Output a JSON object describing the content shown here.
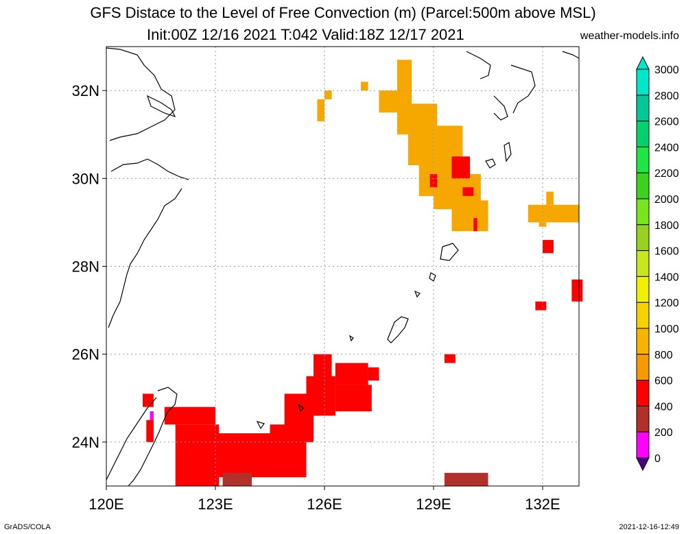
{
  "title": {
    "line1": "GFS Distace to the Level of Free Convection (m) (Parcel:500m above MSL)",
    "line2": "Init:00Z 12/16 2021 T:042 Valid:18Z 12/17 2021",
    "site": "weather-models.info"
  },
  "footer": {
    "left": "GrADS/COLA",
    "right": "2021-12-16-12:49"
  },
  "map": {
    "lon_range": [
      120,
      133
    ],
    "lat_range": [
      23,
      33
    ],
    "lon_ticks": [
      {
        "lon": 120,
        "label": "120E"
      },
      {
        "lon": 123,
        "label": "123E"
      },
      {
        "lon": 126,
        "label": "126E"
      },
      {
        "lon": 129,
        "label": "129E"
      },
      {
        "lon": 132,
        "label": "132E"
      }
    ],
    "lat_ticks": [
      {
        "lat": 24,
        "label": "24N"
      },
      {
        "lat": 26,
        "label": "26N"
      },
      {
        "lat": 28,
        "label": "28N"
      },
      {
        "lat": 30,
        "label": "30N"
      },
      {
        "lat": 32,
        "label": "32N"
      }
    ],
    "cells": [
      {
        "lon": 121.0,
        "lat": 24.8,
        "w": 0.3,
        "h": 0.3,
        "c": "#ff0000"
      },
      {
        "lon": 121.2,
        "lat": 24.5,
        "w": 0.1,
        "h": 0.2,
        "c": "#ff00ff"
      },
      {
        "lon": 121.1,
        "lat": 24.0,
        "w": 0.2,
        "h": 0.5,
        "c": "#ff0000"
      },
      {
        "lon": 121.6,
        "lat": 24.4,
        "w": 1.4,
        "h": 0.4,
        "c": "#ff0000"
      },
      {
        "lon": 121.9,
        "lat": 23.0,
        "w": 1.2,
        "h": 1.4,
        "c": "#ff0000"
      },
      {
        "lon": 123.0,
        "lat": 23.2,
        "w": 2.5,
        "h": 1.0,
        "c": "#ff0000"
      },
      {
        "lon": 124.5,
        "lat": 23.8,
        "w": 1.0,
        "h": 0.6,
        "c": "#ff0000"
      },
      {
        "lon": 124.9,
        "lat": 24.0,
        "w": 0.8,
        "h": 1.1,
        "c": "#ff0000"
      },
      {
        "lon": 125.5,
        "lat": 24.6,
        "w": 0.8,
        "h": 0.9,
        "c": "#ff0000"
      },
      {
        "lon": 126.3,
        "lat": 24.7,
        "w": 1.0,
        "h": 0.6,
        "c": "#ff0000"
      },
      {
        "lon": 126.3,
        "lat": 25.3,
        "w": 0.9,
        "h": 0.5,
        "c": "#ff0000"
      },
      {
        "lon": 127.2,
        "lat": 25.4,
        "w": 0.3,
        "h": 0.3,
        "c": "#ff0000"
      },
      {
        "lon": 125.7,
        "lat": 25.4,
        "w": 0.5,
        "h": 0.6,
        "c": "#ff0000"
      },
      {
        "lon": 129.3,
        "lat": 25.8,
        "w": 0.3,
        "h": 0.2,
        "c": "#ff0000"
      },
      {
        "lon": 131.8,
        "lat": 27.0,
        "w": 0.3,
        "h": 0.2,
        "c": "#ff0000"
      },
      {
        "lon": 132.8,
        "lat": 27.2,
        "w": 0.3,
        "h": 0.5,
        "c": "#ff0000"
      },
      {
        "lon": 132.0,
        "lat": 28.3,
        "w": 0.3,
        "h": 0.3,
        "c": "#ff0000"
      },
      {
        "lon": 129.3,
        "lat": 23.0,
        "w": 1.2,
        "h": 0.3,
        "c": "#b2302a"
      },
      {
        "lon": 123.2,
        "lat": 23.0,
        "w": 0.8,
        "h": 0.3,
        "c": "#b2302a"
      },
      {
        "lon": 125.8,
        "lat": 31.3,
        "w": 0.2,
        "h": 0.5,
        "c": "#f7a800"
      },
      {
        "lon": 126.0,
        "lat": 31.8,
        "w": 0.2,
        "h": 0.2,
        "c": "#f7a800"
      },
      {
        "lon": 127.0,
        "lat": 32.0,
        "w": 0.2,
        "h": 0.2,
        "c": "#f7a800"
      },
      {
        "lon": 127.5,
        "lat": 31.5,
        "w": 0.6,
        "h": 0.5,
        "c": "#f7a800"
      },
      {
        "lon": 128.0,
        "lat": 31.0,
        "w": 0.4,
        "h": 1.7,
        "c": "#f7a800"
      },
      {
        "lon": 128.3,
        "lat": 30.3,
        "w": 0.8,
        "h": 1.4,
        "c": "#f7a800"
      },
      {
        "lon": 128.6,
        "lat": 29.6,
        "w": 1.2,
        "h": 1.6,
        "c": "#f7a800"
      },
      {
        "lon": 129.0,
        "lat": 29.3,
        "w": 1.3,
        "h": 0.8,
        "c": "#f7a800"
      },
      {
        "lon": 129.5,
        "lat": 28.8,
        "w": 1.0,
        "h": 0.7,
        "c": "#f7a800"
      },
      {
        "lon": 131.6,
        "lat": 29.0,
        "w": 1.4,
        "h": 0.4,
        "c": "#f7a800"
      },
      {
        "lon": 131.9,
        "lat": 28.9,
        "w": 0.2,
        "h": 0.1,
        "c": "#f7a800"
      },
      {
        "lon": 132.1,
        "lat": 29.4,
        "w": 0.2,
        "h": 0.3,
        "c": "#f7a800"
      },
      {
        "lon": 129.5,
        "lat": 30.0,
        "w": 0.5,
        "h": 0.5,
        "c": "#ff0000"
      },
      {
        "lon": 129.8,
        "lat": 29.6,
        "w": 0.3,
        "h": 0.2,
        "c": "#ff0000"
      },
      {
        "lon": 128.9,
        "lat": 29.8,
        "w": 0.2,
        "h": 0.3,
        "c": "#ff0000"
      },
      {
        "lon": 130.1,
        "lat": 28.8,
        "w": 0.1,
        "h": 0.3,
        "c": "#ff0000"
      }
    ]
  },
  "colorbar": {
    "levels": [
      "3000",
      "2800",
      "2600",
      "2400",
      "2200",
      "2000",
      "1800",
      "1600",
      "1400",
      "1200",
      "1000",
      "800",
      "600",
      "400",
      "200",
      "0"
    ],
    "colors": [
      "#00e6c8",
      "#00c896",
      "#00d26e",
      "#1ee646",
      "#3cd21e",
      "#78e61e",
      "#96d21e",
      "#c8e61e",
      "#f0f000",
      "#f5d200",
      "#f7b400",
      "#f59b00",
      "#ff0000",
      "#b2302a",
      "#ff00ff",
      "#4b0082"
    ]
  }
}
